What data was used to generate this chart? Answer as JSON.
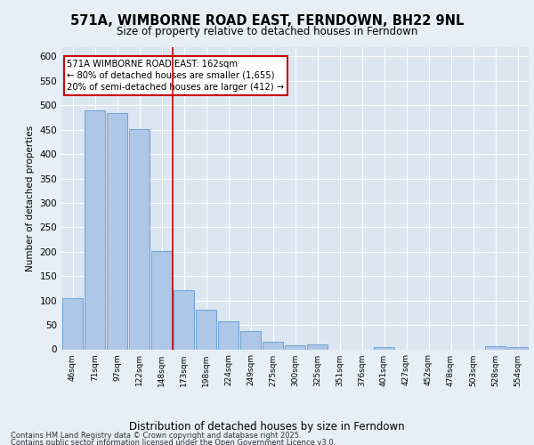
{
  "title_line1": "571A, WIMBORNE ROAD EAST, FERNDOWN, BH22 9NL",
  "title_line2": "Size of property relative to detached houses in Ferndown",
  "xlabel": "Distribution of detached houses by size in Ferndown",
  "ylabel": "Number of detached properties",
  "categories": [
    "46sqm",
    "71sqm",
    "97sqm",
    "122sqm",
    "148sqm",
    "173sqm",
    "198sqm",
    "224sqm",
    "249sqm",
    "275sqm",
    "300sqm",
    "325sqm",
    "351sqm",
    "376sqm",
    "401sqm",
    "427sqm",
    "452sqm",
    "478sqm",
    "503sqm",
    "528sqm",
    "554sqm"
  ],
  "values": [
    105,
    490,
    485,
    452,
    202,
    122,
    82,
    58,
    38,
    15,
    8,
    10,
    0,
    0,
    5,
    0,
    0,
    0,
    0,
    7,
    5
  ],
  "bar_color": "#aec6e8",
  "bar_edge_color": "#5b9bd5",
  "red_line_index": 4.5,
  "annotation_title": "571A WIMBORNE ROAD EAST: 162sqm",
  "annotation_line1": "← 80% of detached houses are smaller (1,655)",
  "annotation_line2": "20% of semi-detached houses are larger (412) →",
  "ylim": [
    0,
    620
  ],
  "yticks": [
    0,
    50,
    100,
    150,
    200,
    250,
    300,
    350,
    400,
    450,
    500,
    550,
    600
  ],
  "bg_color": "#e8eef5",
  "plot_bg_color": "#dce6f0",
  "footnote_line1": "Contains HM Land Registry data © Crown copyright and database right 2025.",
  "footnote_line2": "Contains public sector information licensed under the Open Government Licence v3.0.",
  "grid_color": "#ffffff",
  "annotation_box_color": "#ffffff",
  "annotation_box_edge": "#cc0000",
  "title_fontsize": 10.5,
  "subtitle_fontsize": 8.5
}
